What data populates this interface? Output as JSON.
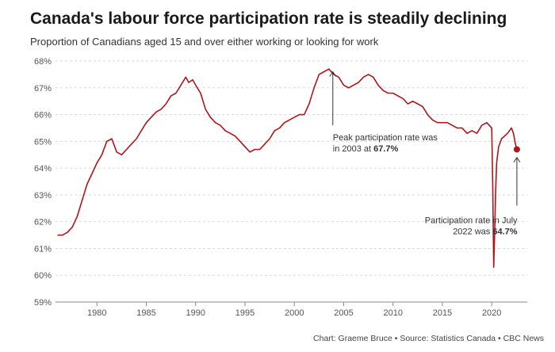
{
  "header": {
    "title": "Canada's labour force participation rate is steadily declining",
    "subtitle": "Proportion of Canadians aged 15 and over either working or looking for work"
  },
  "footer": {
    "credit": "Chart: Graeme Bruce • Source: Statistics Canada • CBC News"
  },
  "colors": {
    "line": "#b01519",
    "grid": "#d9d9d9",
    "axis": "#888888",
    "annotation_arrow": "#333333"
  },
  "chart_data": {
    "type": "line",
    "title": "Canada's labour force participation rate is steadily declining",
    "subtitle": "Proportion of Canadians aged 15 and over either working or looking for work",
    "xlabel": "",
    "ylabel": "",
    "xlim": [
      1975.8,
      2023.6
    ],
    "ylim": [
      59,
      68
    ],
    "x_ticks": [
      1980,
      1985,
      1990,
      1995,
      2000,
      2005,
      2010,
      2015,
      2020
    ],
    "y_ticks": [
      {
        "value": 59,
        "label": "59%"
      },
      {
        "value": 60,
        "label": "60%"
      },
      {
        "value": 61,
        "label": "61%"
      },
      {
        "value": 62,
        "label": "62%"
      },
      {
        "value": 63,
        "label": "63%"
      },
      {
        "value": 64,
        "label": "64%"
      },
      {
        "value": 65,
        "label": "65%"
      },
      {
        "value": 66,
        "label": "66%"
      },
      {
        "value": 67,
        "label": "67%"
      },
      {
        "value": 68,
        "label": "68%"
      }
    ],
    "grid": "horizontal dashed",
    "series": [
      {
        "name": "",
        "x": [
          1976.0,
          1976.5,
          1977.0,
          1977.5,
          1978.0,
          1978.5,
          1979.0,
          1979.5,
          1980.0,
          1980.5,
          1981.0,
          1981.5,
          1982.0,
          1982.5,
          1983.0,
          1983.5,
          1984.0,
          1984.5,
          1985.0,
          1985.5,
          1986.0,
          1986.5,
          1987.0,
          1987.5,
          1988.0,
          1988.5,
          1989.0,
          1989.3,
          1989.7,
          1990.0,
          1990.5,
          1991.0,
          1991.5,
          1992.0,
          1992.5,
          1993.0,
          1993.5,
          1994.0,
          1994.5,
          1995.0,
          1995.5,
          1996.0,
          1996.5,
          1997.0,
          1997.5,
          1998.0,
          1998.5,
          1999.0,
          1999.5,
          2000.0,
          2000.5,
          2001.0,
          2001.5,
          2002.0,
          2002.5,
          2003.0,
          2003.5,
          2004.0,
          2004.5,
          2005.0,
          2005.5,
          2006.0,
          2006.5,
          2007.0,
          2007.5,
          2008.0,
          2008.5,
          2009.0,
          2009.5,
          2010.0,
          2010.5,
          2011.0,
          2011.5,
          2012.0,
          2012.5,
          2013.0,
          2013.5,
          2014.0,
          2014.5,
          2015.0,
          2015.5,
          2016.0,
          2016.5,
          2017.0,
          2017.5,
          2018.0,
          2018.5,
          2019.0,
          2019.5,
          2020.0,
          2020.1,
          2020.2,
          2020.3,
          2020.4,
          2020.5,
          2020.7,
          2021.0,
          2021.3,
          2021.6,
          2022.0,
          2022.2,
          2022.4,
          2022.55
        ],
        "y": [
          61.5,
          61.5,
          61.6,
          61.8,
          62.2,
          62.8,
          63.4,
          63.8,
          64.2,
          64.5,
          65.0,
          65.1,
          64.6,
          64.5,
          64.7,
          64.9,
          65.1,
          65.4,
          65.7,
          65.9,
          66.1,
          66.2,
          66.4,
          66.7,
          66.8,
          67.1,
          67.4,
          67.2,
          67.3,
          67.1,
          66.8,
          66.2,
          65.9,
          65.7,
          65.6,
          65.4,
          65.3,
          65.2,
          65.0,
          64.8,
          64.6,
          64.7,
          64.7,
          64.9,
          65.1,
          65.4,
          65.5,
          65.7,
          65.8,
          65.9,
          66.0,
          66.0,
          66.4,
          67.0,
          67.5,
          67.6,
          67.7,
          67.5,
          67.4,
          67.1,
          67.0,
          67.1,
          67.2,
          67.4,
          67.5,
          67.4,
          67.1,
          66.9,
          66.8,
          66.8,
          66.7,
          66.6,
          66.4,
          66.5,
          66.4,
          66.3,
          66.0,
          65.8,
          65.7,
          65.7,
          65.7,
          65.6,
          65.5,
          65.5,
          65.3,
          65.4,
          65.3,
          65.6,
          65.7,
          65.5,
          63.5,
          60.3,
          61.6,
          63.2,
          64.2,
          64.8,
          65.1,
          65.2,
          65.3,
          65.5,
          65.3,
          64.9,
          64.7
        ]
      }
    ],
    "annotations": [
      {
        "lines": [
          [
            {
              "text": "Peak participation rate was",
              "bold": false
            }
          ],
          [
            {
              "text": "in 2003 at ",
              "bold": false
            },
            {
              "text": "67.7%",
              "bold": true
            }
          ]
        ],
        "arrow_from": {
          "x": 2003.9,
          "y": 65.6
        },
        "arrow_to": {
          "x": 2003.9,
          "y": 67.6
        },
        "text_anchor": "start",
        "text_at": {
          "x": 2003.9,
          "y": 65.4
        }
      },
      {
        "lines": [
          [
            {
              "text": "Participation rate in July",
              "bold": false
            }
          ],
          [
            {
              "text": "2022 was ",
              "bold": false
            },
            {
              "text": "64.7%",
              "bold": true
            }
          ]
        ],
        "arrow_from": {
          "x": 2022.55,
          "y": 62.6
        },
        "arrow_to": {
          "x": 2022.55,
          "y": 64.4
        },
        "text_anchor": "end",
        "text_at": {
          "x": 2022.6,
          "y": 62.3
        }
      }
    ],
    "end_marker": {
      "x": 2022.55,
      "y": 64.7
    }
  }
}
